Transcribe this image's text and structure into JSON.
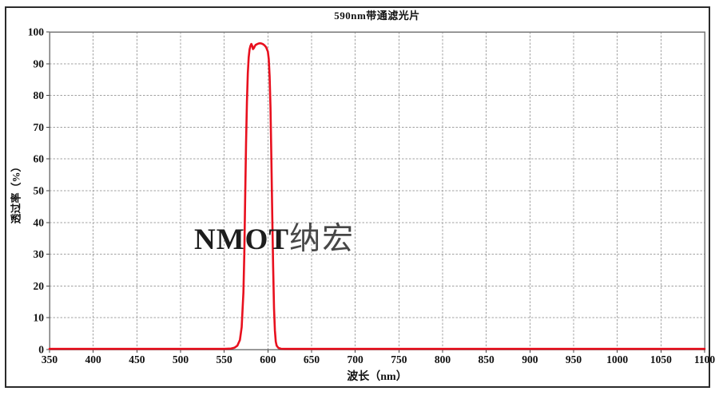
{
  "watermark": {
    "latin": "NMOT",
    "cjk": "纳宏"
  },
  "chart_data": {
    "type": "line",
    "title": "590nm带通滤光片",
    "xlabel": "波长（nm）",
    "ylabel": "透过率（%）",
    "xlim": [
      350,
      1100
    ],
    "ylim": [
      0,
      100
    ],
    "x_ticks": [
      350,
      400,
      450,
      500,
      550,
      600,
      650,
      700,
      750,
      800,
      850,
      900,
      950,
      1000,
      1050,
      1100
    ],
    "y_ticks": [
      0,
      10,
      20,
      30,
      40,
      50,
      60,
      70,
      80,
      90,
      100
    ],
    "grid": "major-both-dashed",
    "legend": "none",
    "colors": {
      "curve": "#e8101e",
      "grid": "#a0a0a0",
      "frame": "#787878",
      "tick": "#444444",
      "text": "#111111"
    },
    "series": [
      {
        "name": "透过率",
        "x": [
          350,
          400,
          450,
          500,
          530,
          550,
          558,
          562,
          565,
          568,
          570,
          572,
          573,
          574,
          575,
          576,
          577,
          578,
          579,
          580,
          581,
          582,
          583,
          584,
          585,
          586,
          588,
          590,
          592,
          594,
          596,
          598,
          600,
          601,
          602,
          603,
          604,
          605,
          606,
          607,
          608,
          609,
          610,
          612,
          615,
          620,
          650,
          700,
          750,
          800,
          850,
          900,
          950,
          1000,
          1050,
          1100
        ],
        "y": [
          0.2,
          0.2,
          0.2,
          0.2,
          0.2,
          0.2,
          0.3,
          0.6,
          1.2,
          3,
          7,
          18,
          30,
          48,
          65,
          78,
          87,
          92,
          94.5,
          95.6,
          96.2,
          95.6,
          94.6,
          94.9,
          95.5,
          95.9,
          96.2,
          96.4,
          96.4,
          96.2,
          95.8,
          95.2,
          93.8,
          91.5,
          86,
          76,
          60,
          42,
          26,
          13,
          6,
          2.5,
          1.2,
          0.5,
          0.25,
          0.2,
          0.2,
          0.2,
          0.2,
          0.2,
          0.2,
          0.2,
          0.2,
          0.2,
          0.2,
          0.2
        ]
      }
    ]
  }
}
